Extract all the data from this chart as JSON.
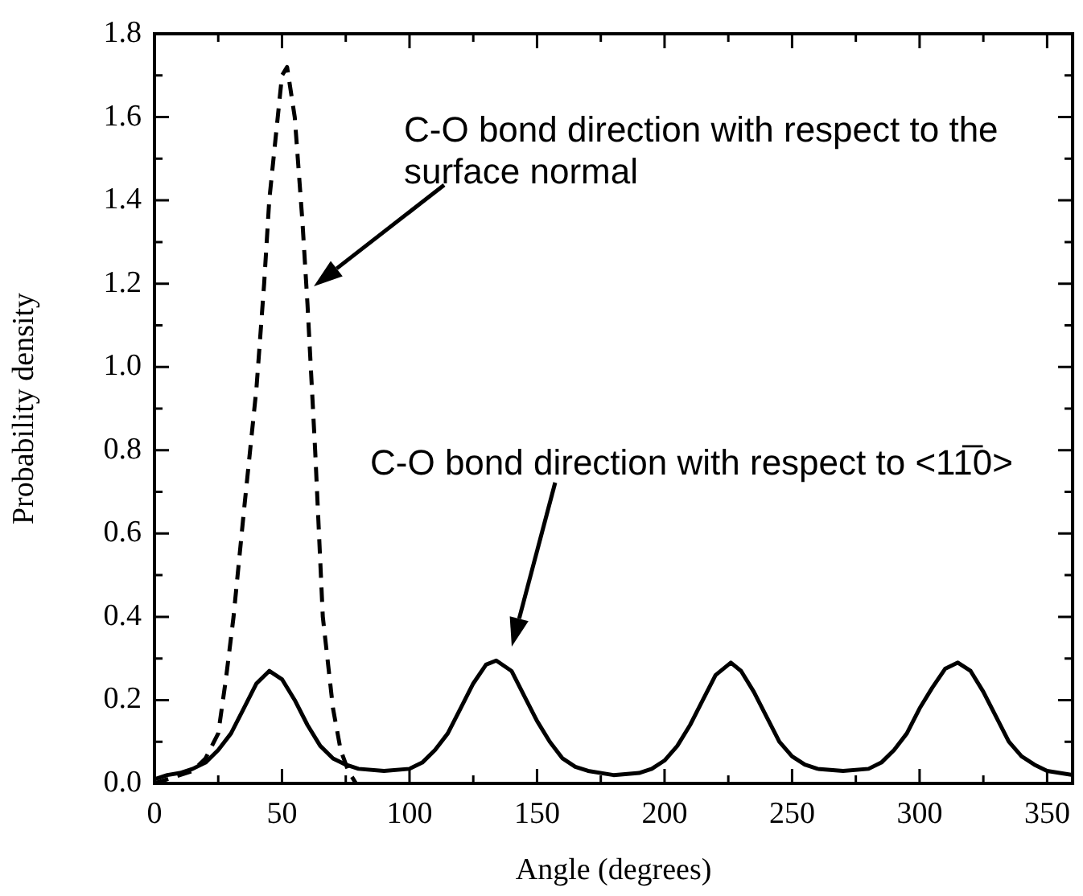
{
  "chart_data": {
    "type": "line",
    "xlabel": "Angle (degrees)",
    "ylabel": "Probability density",
    "xlim": [
      0,
      360
    ],
    "xticks": [
      0,
      {
        "value": 25,
        "label": null
      },
      50,
      {
        "value": 75,
        "label": null
      },
      100,
      {
        "value": 125,
        "label": null
      },
      150,
      {
        "value": 175,
        "label": null
      },
      200,
      {
        "value": 225,
        "label": null
      },
      250,
      {
        "value": 275,
        "label": null
      },
      300,
      {
        "value": 325,
        "label": null
      },
      350
    ],
    "ylim": [
      0,
      1.8
    ],
    "yticks": [
      {
        "value": 0,
        "label": "0.0"
      },
      {
        "value": 0.1,
        "label": null
      },
      {
        "value": 0.2,
        "label": "0.2"
      },
      {
        "value": 0.3,
        "label": null
      },
      {
        "value": 0.4,
        "label": "0.4"
      },
      {
        "value": 0.5,
        "label": null
      },
      {
        "value": 0.6,
        "label": "0.6"
      },
      {
        "value": 0.7,
        "label": null
      },
      {
        "value": 0.8,
        "label": "0.8"
      },
      {
        "value": 0.9,
        "label": null
      },
      {
        "value": 1.0,
        "label": "1.0"
      },
      {
        "value": 1.1,
        "label": null
      },
      {
        "value": 1.2,
        "label": "1.2"
      },
      {
        "value": 1.3,
        "label": null
      },
      {
        "value": 1.4,
        "label": "1.4"
      },
      {
        "value": 1.5,
        "label": null
      },
      {
        "value": 1.6,
        "label": "1.6"
      },
      {
        "value": 1.7,
        "label": null
      },
      {
        "value": 1.8,
        "label": "1.8"
      }
    ],
    "grid": false,
    "legend": false,
    "marker": "none",
    "series": [
      {
        "color": "#000000",
        "line_style": "dashed",
        "x": [
          0,
          5,
          10,
          15,
          20,
          25,
          28,
          31,
          35,
          40,
          43,
          45,
          50,
          52,
          55,
          58,
          60,
          63,
          66,
          70,
          73,
          76,
          79
        ],
        "values": [
          0.0,
          0.01,
          0.02,
          0.03,
          0.06,
          0.12,
          0.25,
          0.4,
          0.65,
          0.95,
          1.2,
          1.4,
          1.7,
          1.72,
          1.6,
          1.35,
          1.15,
          0.8,
          0.4,
          0.18,
          0.08,
          0.03,
          0.0
        ]
      },
      {
        "color": "#000000",
        "line_style": "solid",
        "x": [
          0,
          5,
          10,
          15,
          20,
          25,
          30,
          35,
          40,
          45,
          50,
          55,
          60,
          65,
          70,
          75,
          80,
          90,
          100,
          105,
          110,
          115,
          120,
          125,
          130,
          134,
          140,
          145,
          150,
          155,
          160,
          165,
          170,
          180,
          190,
          195,
          200,
          205,
          210,
          215,
          220,
          226,
          230,
          235,
          240,
          245,
          250,
          255,
          260,
          270,
          280,
          285,
          290,
          295,
          300,
          305,
          310,
          315,
          320,
          325,
          330,
          335,
          340,
          345,
          350,
          360
        ],
        "values": [
          0.01,
          0.02,
          0.025,
          0.035,
          0.05,
          0.08,
          0.12,
          0.18,
          0.24,
          0.27,
          0.25,
          0.2,
          0.14,
          0.09,
          0.06,
          0.045,
          0.035,
          0.03,
          0.035,
          0.05,
          0.08,
          0.12,
          0.18,
          0.24,
          0.285,
          0.295,
          0.27,
          0.21,
          0.15,
          0.1,
          0.06,
          0.04,
          0.03,
          0.02,
          0.025,
          0.035,
          0.055,
          0.09,
          0.14,
          0.2,
          0.26,
          0.29,
          0.27,
          0.22,
          0.16,
          0.1,
          0.065,
          0.045,
          0.035,
          0.03,
          0.035,
          0.05,
          0.08,
          0.12,
          0.18,
          0.23,
          0.275,
          0.29,
          0.27,
          0.22,
          0.16,
          0.1,
          0.065,
          0.045,
          0.03,
          0.02
        ]
      }
    ],
    "annotations": [
      "C-O bond direction with respect to the surface normal",
      "C-O bond direction with respect to <11̅0>"
    ]
  }
}
